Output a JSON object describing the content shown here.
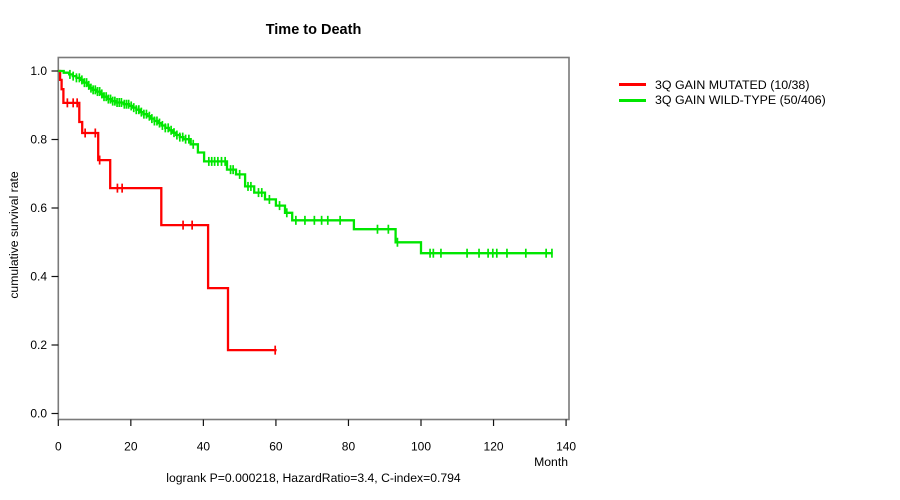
{
  "chart_data": {
    "type": "line",
    "subtype": "kaplan-meier-step",
    "title": "Time to Death",
    "xlabel": "Month",
    "ylabel": "cumulative survival rate",
    "annotation": "logrank P=0.000218, HazardRatio=3.4, C-index=0.794",
    "xlim": [
      0,
      141
    ],
    "ylim": [
      0,
      1.04
    ],
    "grid": false,
    "legend_position": "right",
    "x_ticks": [
      {
        "label": "0",
        "v": 0
      },
      {
        "label": "20",
        "v": 20
      },
      {
        "label": "40",
        "v": 40
      },
      {
        "label": "60",
        "v": 60
      },
      {
        "label": "80",
        "v": 80
      },
      {
        "label": "100",
        "v": 100
      },
      {
        "label": "120",
        "v": 120
      },
      {
        "label": "140",
        "v": 140
      }
    ],
    "y_ticks": [
      {
        "label": "0.0",
        "v": 0.0
      },
      {
        "label": "0.2",
        "v": 0.2
      },
      {
        "label": "0.4",
        "v": 0.4
      },
      {
        "label": "0.6",
        "v": 0.6
      },
      {
        "label": "0.8",
        "v": 0.8
      },
      {
        "label": "1.0",
        "v": 1.0
      }
    ],
    "series": [
      {
        "name": "3Q GAIN MUTATED (10/38)",
        "color": "#ff0000",
        "end_month": 60.2,
        "steps": [
          [
            0,
            1.0
          ],
          [
            0.5,
            0.974
          ],
          [
            0.9,
            0.947
          ],
          [
            1.4,
            0.907
          ],
          [
            5.8,
            0.851
          ],
          [
            6.6,
            0.819
          ],
          [
            11.0,
            0.74
          ],
          [
            14.3,
            0.658
          ],
          [
            28.4,
            0.55
          ],
          [
            41.3,
            0.366
          ],
          [
            46.8,
            0.185
          ]
        ],
        "censor_months": [
          2.5,
          4.1,
          5.2,
          7.4,
          10.2,
          11.4,
          16.3,
          17.6,
          34.4,
          36.9,
          59.8
        ]
      },
      {
        "name": "3Q GAIN WILD-TYPE (50/406)",
        "color": "#00e600",
        "end_month": 136.3,
        "steps": [
          [
            0,
            1.0
          ],
          [
            1.5,
            0.995
          ],
          [
            3,
            0.99
          ],
          [
            4,
            0.985
          ],
          [
            5,
            0.98
          ],
          [
            6,
            0.974
          ],
          [
            7,
            0.966
          ],
          [
            8,
            0.958
          ],
          [
            8.6,
            0.95
          ],
          [
            9.5,
            0.945
          ],
          [
            10.5,
            0.94
          ],
          [
            11.5,
            0.933
          ],
          [
            12.5,
            0.925
          ],
          [
            13.5,
            0.918
          ],
          [
            14.5,
            0.912
          ],
          [
            16,
            0.908
          ],
          [
            18,
            0.903
          ],
          [
            19.5,
            0.898
          ],
          [
            20.5,
            0.893
          ],
          [
            21.5,
            0.887
          ],
          [
            22.5,
            0.88
          ],
          [
            23.5,
            0.874
          ],
          [
            24.5,
            0.868
          ],
          [
            25.5,
            0.861
          ],
          [
            26.5,
            0.854
          ],
          [
            27.5,
            0.848
          ],
          [
            28.5,
            0.841
          ],
          [
            29.5,
            0.834
          ],
          [
            30.5,
            0.827
          ],
          [
            31.5,
            0.82
          ],
          [
            32.5,
            0.813
          ],
          [
            33.5,
            0.807
          ],
          [
            34.5,
            0.801
          ],
          [
            36.5,
            0.786
          ],
          [
            38.5,
            0.762
          ],
          [
            40.2,
            0.736
          ],
          [
            46.5,
            0.712
          ],
          [
            49,
            0.698
          ],
          [
            51.5,
            0.663
          ],
          [
            54,
            0.645
          ],
          [
            57,
            0.625
          ],
          [
            60,
            0.607
          ],
          [
            62.5,
            0.586
          ],
          [
            64.5,
            0.564
          ],
          [
            81.5,
            0.538
          ],
          [
            93,
            0.5
          ],
          [
            100,
            0.468
          ]
        ],
        "censor_months": [
          3.2,
          4.1,
          5,
          5.8,
          6.5,
          7.2,
          7.8,
          8.4,
          9,
          9.6,
          10.2,
          10.8,
          11.4,
          12,
          12.6,
          13.2,
          13.8,
          14.4,
          15,
          15.6,
          16.2,
          16.8,
          17.4,
          18.2,
          18.8,
          19.4,
          20.1,
          20.8,
          21.5,
          22.2,
          22.9,
          23.6,
          24.3,
          25.1,
          25.8,
          26.5,
          27.2,
          27.9,
          28.7,
          29.5,
          30.3,
          31.1,
          31.9,
          32.7,
          33.5,
          34.3,
          35.1,
          36,
          37.2,
          41.5,
          42.3,
          43.1,
          44,
          45,
          46,
          47.5,
          48.2,
          50,
          52.3,
          53.1,
          55.2,
          56.1,
          58.2,
          61,
          63,
          65.5,
          68,
          70.6,
          72.6,
          74.3,
          77.7,
          88,
          91,
          93.5,
          102.5,
          103.4,
          105.5,
          112.7,
          116,
          118.5,
          119.8,
          120.9,
          123.7,
          128.9,
          134.5,
          136.1
        ]
      }
    ]
  }
}
